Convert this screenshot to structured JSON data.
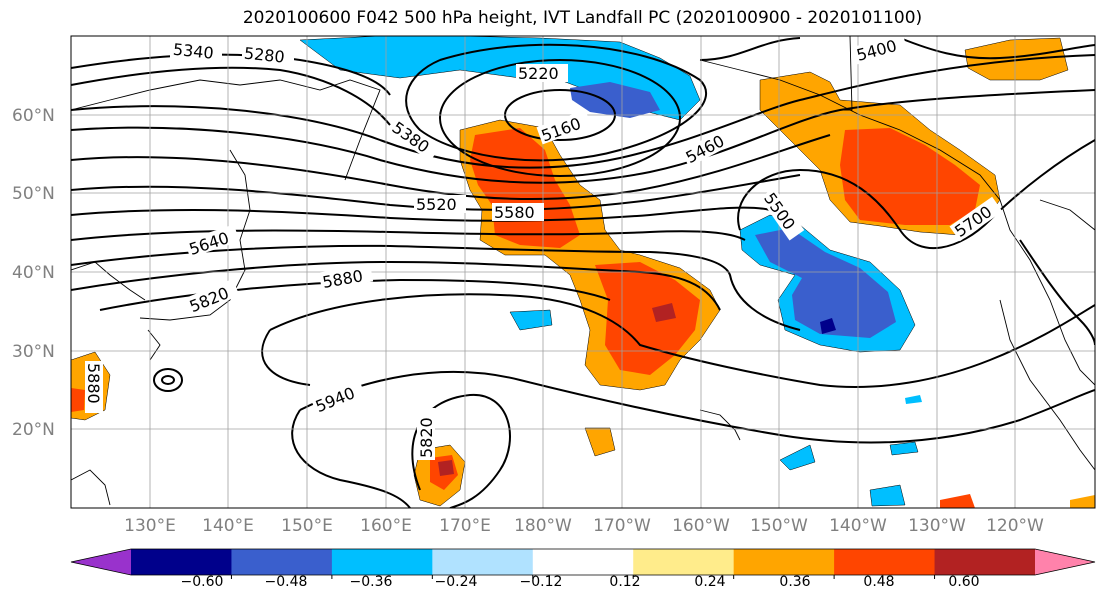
{
  "title": "2020100600 F042 500 hPa height, IVT Landfall PC (2020100900 - 2020101100)",
  "map": {
    "lat_labels": [
      "60°N",
      "50°N",
      "40°N",
      "30°N",
      "20°N"
    ],
    "lon_labels": [
      "130°E",
      "140°E",
      "150°E",
      "160°E",
      "170°E",
      "180°W",
      "170°W",
      "160°W",
      "150°W",
      "140°W",
      "130°W",
      "120°W"
    ],
    "height_contour_labels": [
      "5340",
      "5280",
      "5220",
      "5160",
      "5380",
      "5460",
      "5520",
      "5580",
      "5640",
      "5820",
      "5880",
      "5940",
      "5820",
      "5880",
      "5400",
      "5500",
      "5700"
    ],
    "colors": {
      "contour": "#000000",
      "grid": "#a0a0a0",
      "coast": "#000000"
    }
  },
  "colorbar": {
    "tick_labels": [
      "−0.60",
      "−0.48",
      "−0.36",
      "−0.24",
      "−0.12",
      "0.12",
      "0.24",
      "0.36",
      "0.48",
      "0.60"
    ],
    "bins": [
      {
        "color": "#9932cc"
      },
      {
        "color": "#00008b"
      },
      {
        "color": "#3a5fcd"
      },
      {
        "color": "#00bfff"
      },
      {
        "color": "#b0e2ff"
      },
      {
        "color": "#ffffff"
      },
      {
        "color": "#ffec8b"
      },
      {
        "color": "#ffa500"
      },
      {
        "color": "#ff4500"
      },
      {
        "color": "#b22222"
      },
      {
        "color": "#ff82ab"
      }
    ]
  }
}
